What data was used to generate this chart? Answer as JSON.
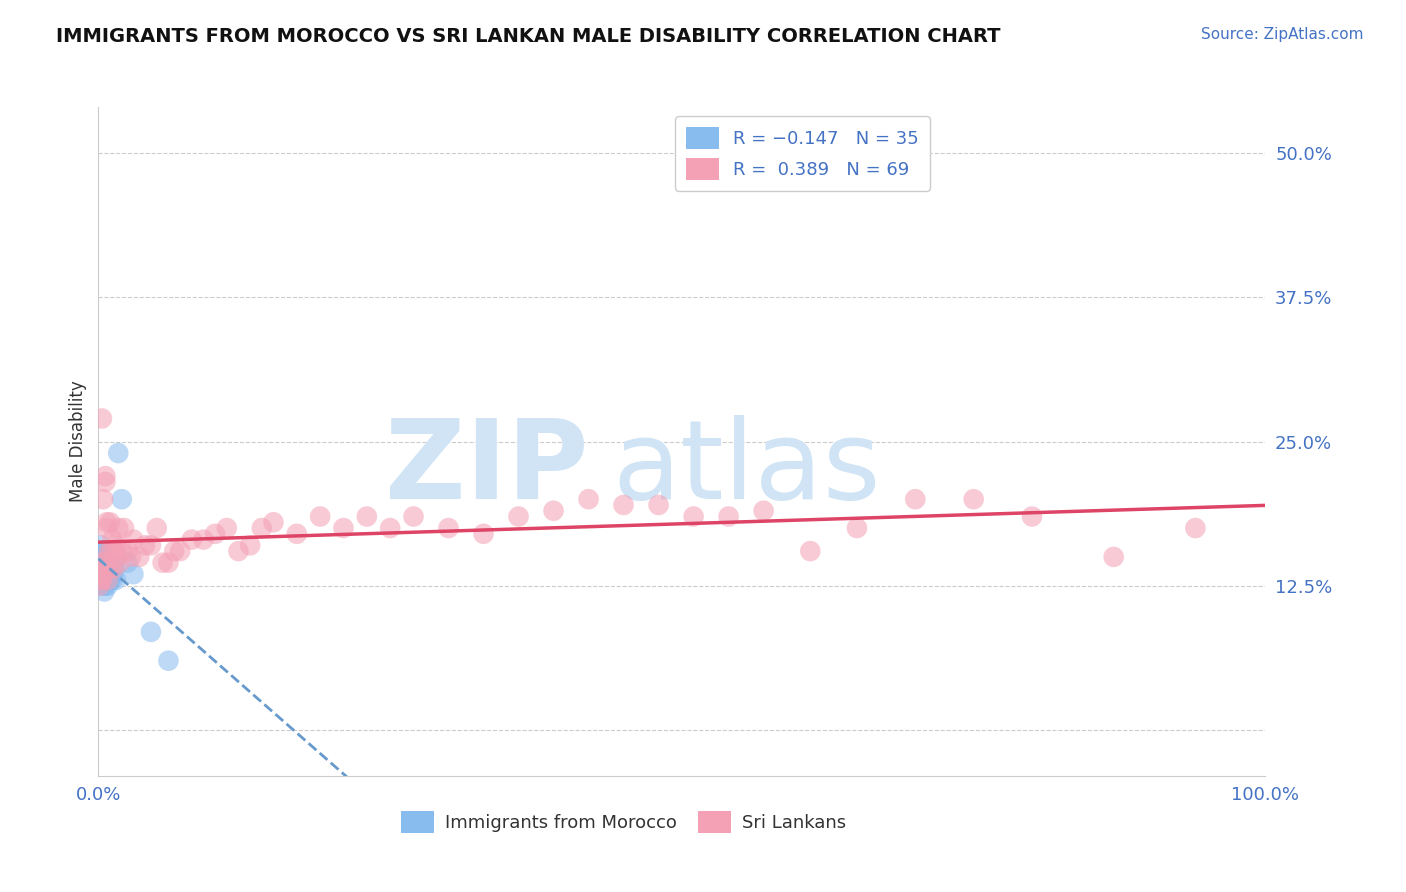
{
  "title": "IMMIGRANTS FROM MOROCCO VS SRI LANKAN MALE DISABILITY CORRELATION CHART",
  "source": "Source: ZipAtlas.com",
  "ylabel": "Male Disability",
  "xlim": [
    0.0,
    1.0
  ],
  "ylim": [
    -0.04,
    0.54
  ],
  "yticks": [
    0.0,
    0.125,
    0.25,
    0.375,
    0.5
  ],
  "ytick_labels": [
    "",
    "12.5%",
    "25.0%",
    "37.5%",
    "50.0%"
  ],
  "xtick_labels": [
    "0.0%",
    "",
    "",
    "",
    "100.0%"
  ],
  "blue_color": "#88BBEE",
  "pink_color": "#F4A0B5",
  "blue_line_color": "#6699CC",
  "pink_line_color": "#DD4466",
  "watermark_zip": "ZIP",
  "watermark_atlas": "atlas",
  "watermark_color": "#D0E4F5",
  "background_color": "#FFFFFF",
  "blue_x": [
    0.001,
    0.001,
    0.002,
    0.002,
    0.002,
    0.003,
    0.003,
    0.003,
    0.004,
    0.004,
    0.004,
    0.005,
    0.005,
    0.005,
    0.006,
    0.006,
    0.007,
    0.007,
    0.008,
    0.008,
    0.009,
    0.009,
    0.01,
    0.01,
    0.011,
    0.012,
    0.013,
    0.014,
    0.015,
    0.017,
    0.02,
    0.025,
    0.03,
    0.045,
    0.06
  ],
  "blue_y": [
    0.145,
    0.155,
    0.13,
    0.14,
    0.16,
    0.125,
    0.135,
    0.15,
    0.13,
    0.14,
    0.155,
    0.12,
    0.13,
    0.145,
    0.125,
    0.14,
    0.13,
    0.145,
    0.125,
    0.14,
    0.13,
    0.145,
    0.13,
    0.145,
    0.135,
    0.13,
    0.135,
    0.14,
    0.13,
    0.24,
    0.2,
    0.145,
    0.135,
    0.085,
    0.06
  ],
  "pink_x": [
    0.001,
    0.001,
    0.002,
    0.002,
    0.003,
    0.003,
    0.004,
    0.004,
    0.005,
    0.006,
    0.006,
    0.007,
    0.007,
    0.008,
    0.009,
    0.01,
    0.01,
    0.011,
    0.012,
    0.013,
    0.014,
    0.015,
    0.016,
    0.017,
    0.018,
    0.02,
    0.022,
    0.025,
    0.028,
    0.03,
    0.035,
    0.04,
    0.045,
    0.05,
    0.055,
    0.06,
    0.065,
    0.07,
    0.08,
    0.09,
    0.1,
    0.11,
    0.12,
    0.13,
    0.14,
    0.15,
    0.17,
    0.19,
    0.21,
    0.23,
    0.25,
    0.27,
    0.3,
    0.33,
    0.36,
    0.39,
    0.42,
    0.45,
    0.48,
    0.51,
    0.54,
    0.57,
    0.61,
    0.65,
    0.7,
    0.75,
    0.8,
    0.87,
    0.94
  ],
  "pink_y": [
    0.125,
    0.14,
    0.13,
    0.145,
    0.13,
    0.27,
    0.2,
    0.135,
    0.145,
    0.215,
    0.22,
    0.18,
    0.175,
    0.13,
    0.155,
    0.14,
    0.18,
    0.155,
    0.165,
    0.14,
    0.155,
    0.16,
    0.15,
    0.175,
    0.145,
    0.155,
    0.175,
    0.155,
    0.15,
    0.165,
    0.15,
    0.16,
    0.16,
    0.175,
    0.145,
    0.145,
    0.155,
    0.155,
    0.165,
    0.165,
    0.17,
    0.175,
    0.155,
    0.16,
    0.175,
    0.18,
    0.17,
    0.185,
    0.175,
    0.185,
    0.175,
    0.185,
    0.175,
    0.17,
    0.185,
    0.19,
    0.2,
    0.195,
    0.195,
    0.185,
    0.185,
    0.19,
    0.155,
    0.175,
    0.2,
    0.2,
    0.185,
    0.15,
    0.175
  ]
}
